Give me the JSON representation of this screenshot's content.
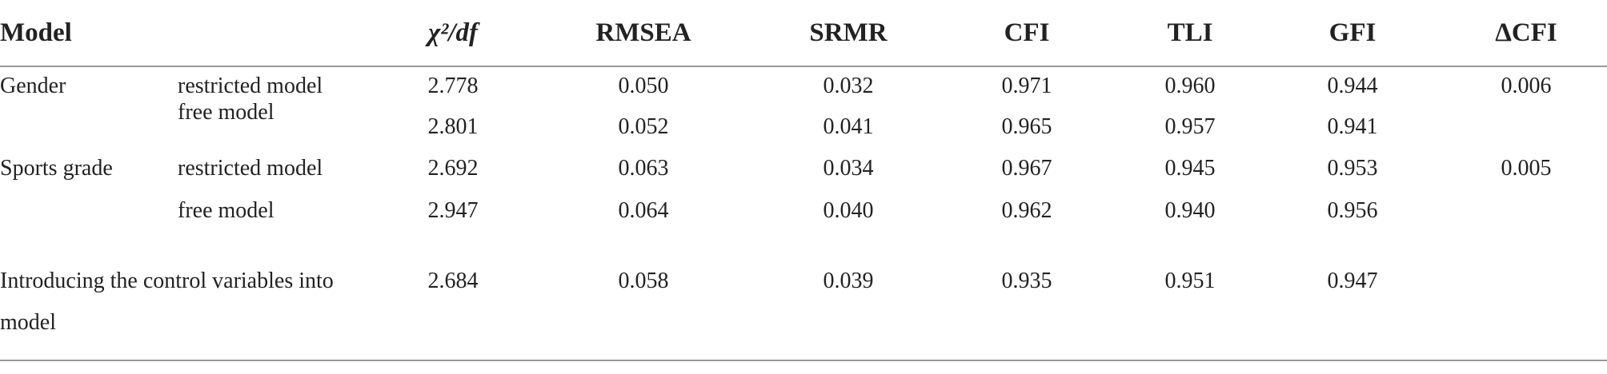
{
  "table": {
    "header": [
      "Model",
      "χ²/df",
      "RMSEA",
      "SRMR",
      "CFI",
      "TLI",
      "GFI",
      "ΔCFI"
    ],
    "rows": [
      {
        "model": "Gender",
        "sub": "restricted model",
        "values": [
          "2.778",
          "0.050",
          "0.032",
          "0.971",
          "0.960",
          "0.944",
          "0.006"
        ]
      },
      {
        "sub": "free model",
        "values": [
          "2.801",
          "0.052",
          "0.041",
          "0.965",
          "0.957",
          "0.941"
        ]
      },
      {
        "model": "Sports grade",
        "sub": "restricted model",
        "values": [
          "2.692",
          "0.063",
          "0.034",
          "0.967",
          "0.945",
          "0.953",
          "0.005"
        ]
      },
      {
        "sub": "free model",
        "values": [
          "2.947",
          "0.064",
          "0.040",
          "0.962",
          "0.940",
          "0.956"
        ]
      },
      {
        "model": "Introducing the control variables into model",
        "values": [
          "2.684",
          "0.058",
          "0.039",
          "0.935",
          "0.951",
          "0.947"
        ]
      }
    ]
  }
}
